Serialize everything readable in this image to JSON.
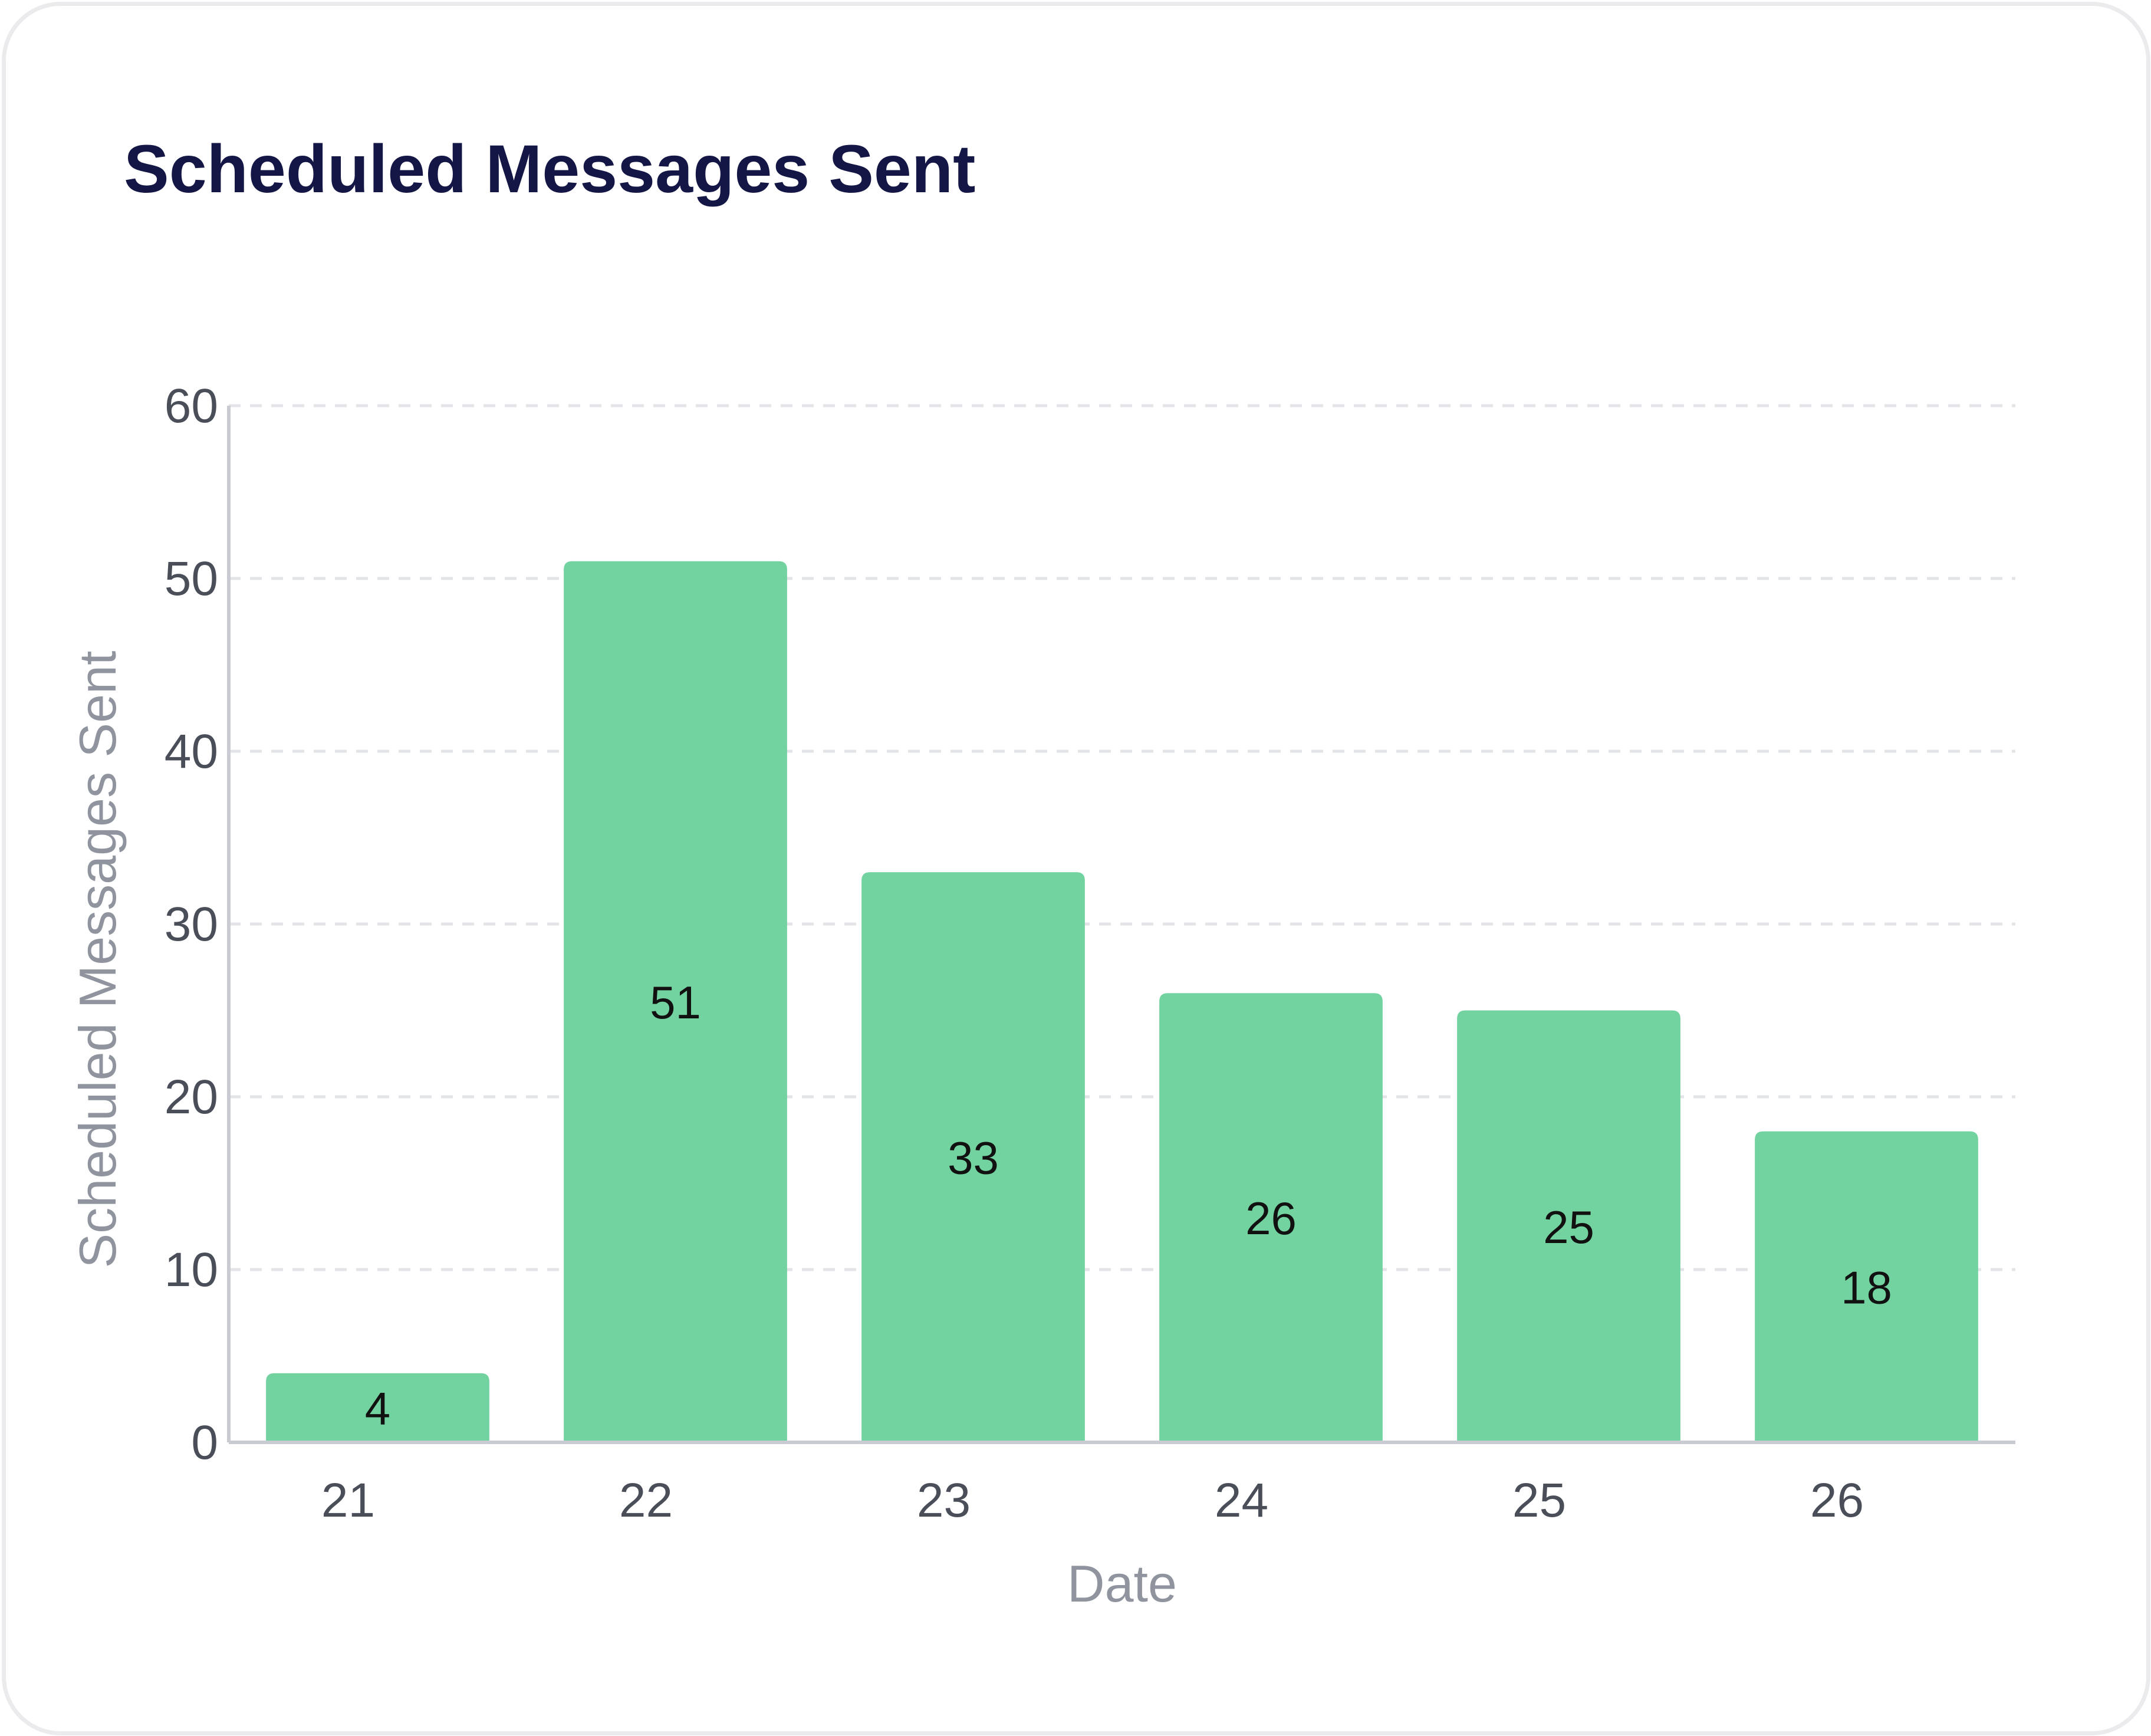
{
  "card": {
    "title": "Scheduled Messages Sent"
  },
  "chart_data": {
    "type": "bar",
    "title": "Scheduled Messages Sent",
    "xlabel": "Date",
    "ylabel": "Scheduled Messages Sent",
    "categories": [
      "21",
      "22",
      "23",
      "24",
      "25",
      "26"
    ],
    "values": [
      4,
      51,
      33,
      26,
      25,
      18
    ],
    "data_labels": [
      "4",
      "51",
      "33",
      "26",
      "25",
      "18"
    ],
    "y_ticks": [
      0,
      10,
      20,
      30,
      40,
      50,
      60
    ],
    "ylim": [
      0,
      60
    ],
    "grid": true,
    "legend": "none",
    "colors": {
      "bar": "#72d3a0"
    }
  }
}
